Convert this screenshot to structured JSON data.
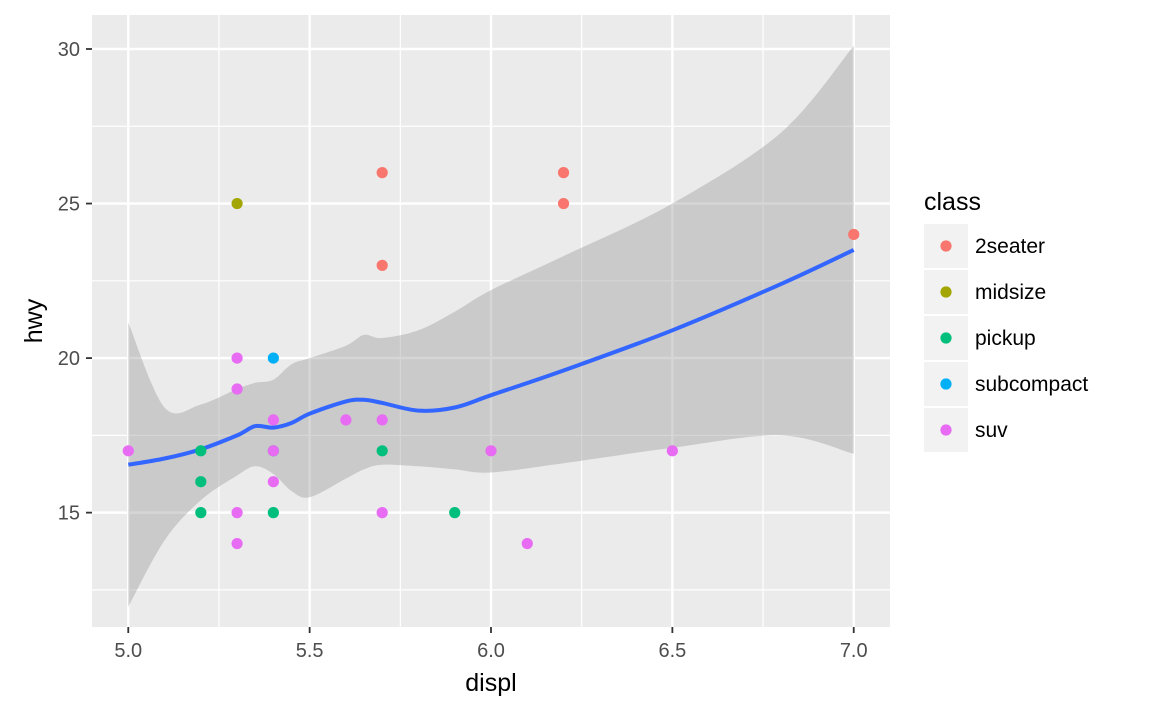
{
  "chart_data": {
    "type": "scatter",
    "xlabel": "displ",
    "ylabel": "hwy",
    "xlim": [
      4.9,
      7.1
    ],
    "ylim": [
      11.3,
      31.1
    ],
    "x_ticks": [
      5.0,
      5.5,
      6.0,
      6.5,
      7.0
    ],
    "x_tick_labels": [
      "5.0",
      "5.5",
      "6.0",
      "6.5",
      "7.0"
    ],
    "y_ticks": [
      15,
      20,
      25,
      30
    ],
    "y_tick_labels": [
      "15",
      "20",
      "25",
      "30"
    ],
    "grid": true,
    "legend": {
      "title": "class",
      "position": "right",
      "entries": [
        {
          "label": "2seater",
          "color": "#F8766D"
        },
        {
          "label": "midsize",
          "color": "#A3A500"
        },
        {
          "label": "pickup",
          "color": "#00BF7D"
        },
        {
          "label": "subcompact",
          "color": "#00B0F6"
        },
        {
          "label": "suv",
          "color": "#E76BF3"
        }
      ]
    },
    "series": [
      {
        "name": "2seater",
        "color": "#F8766D",
        "points": [
          [
            5.7,
            26
          ],
          [
            5.7,
            23
          ],
          [
            6.2,
            26
          ],
          [
            6.2,
            25
          ],
          [
            7.0,
            24
          ]
        ]
      },
      {
        "name": "midsize",
        "color": "#A3A500",
        "points": [
          [
            5.3,
            25
          ]
        ]
      },
      {
        "name": "pickup",
        "color": "#00BF7D",
        "points": [
          [
            5.2,
            17
          ],
          [
            5.2,
            16
          ],
          [
            5.2,
            15
          ],
          [
            5.4,
            17
          ],
          [
            5.4,
            15
          ],
          [
            5.7,
            17
          ],
          [
            5.9,
            15
          ]
        ]
      },
      {
        "name": "subcompact",
        "color": "#00B0F6",
        "points": [
          [
            5.4,
            20
          ]
        ]
      },
      {
        "name": "suv",
        "color": "#E76BF3",
        "points": [
          [
            5.0,
            17
          ],
          [
            5.3,
            20
          ],
          [
            5.3,
            19
          ],
          [
            5.3,
            15
          ],
          [
            5.3,
            14
          ],
          [
            5.4,
            18
          ],
          [
            5.4,
            17
          ],
          [
            5.4,
            16
          ],
          [
            5.6,
            18
          ],
          [
            5.7,
            18
          ],
          [
            5.7,
            15
          ],
          [
            6.0,
            17
          ],
          [
            6.1,
            14
          ],
          [
            6.5,
            17
          ]
        ]
      }
    ],
    "smooth": {
      "color": "#3366FF",
      "band_color": "#999999",
      "points": [
        {
          "x": 5.0,
          "y": 16.55,
          "lo": 11.95,
          "hi": 21.15
        },
        {
          "x": 5.1,
          "y": 16.75,
          "lo": 14.1,
          "hi": 18.4
        },
        {
          "x": 5.2,
          "y": 17.05,
          "lo": 15.4,
          "hi": 18.5
        },
        {
          "x": 5.3,
          "y": 17.5,
          "lo": 16.2,
          "hi": 19.0
        },
        {
          "x": 5.35,
          "y": 17.8,
          "lo": 16.5,
          "hi": 19.2
        },
        {
          "x": 5.4,
          "y": 17.75,
          "lo": 16.25,
          "hi": 19.3
        },
        {
          "x": 5.45,
          "y": 17.9,
          "lo": 15.7,
          "hi": 19.8
        },
        {
          "x": 5.5,
          "y": 18.2,
          "lo": 15.5,
          "hi": 20.0
        },
        {
          "x": 5.6,
          "y": 18.6,
          "lo": 16.1,
          "hi": 20.4
        },
        {
          "x": 5.65,
          "y": 18.65,
          "lo": 16.4,
          "hi": 20.75
        },
        {
          "x": 5.7,
          "y": 18.55,
          "lo": 16.55,
          "hi": 20.65
        },
        {
          "x": 5.8,
          "y": 18.3,
          "lo": 16.5,
          "hi": 20.9
        },
        {
          "x": 5.9,
          "y": 18.4,
          "lo": 16.4,
          "hi": 21.5
        },
        {
          "x": 6.0,
          "y": 18.8,
          "lo": 16.3,
          "hi": 22.2
        },
        {
          "x": 6.2,
          "y": 19.6,
          "lo": 16.6,
          "hi": 23.3
        },
        {
          "x": 6.5,
          "y": 20.9,
          "lo": 17.1,
          "hi": 25.0
        },
        {
          "x": 6.8,
          "y": 22.4,
          "lo": 17.5,
          "hi": 27.3
        },
        {
          "x": 7.0,
          "y": 23.5,
          "lo": 16.9,
          "hi": 30.1
        }
      ]
    }
  }
}
